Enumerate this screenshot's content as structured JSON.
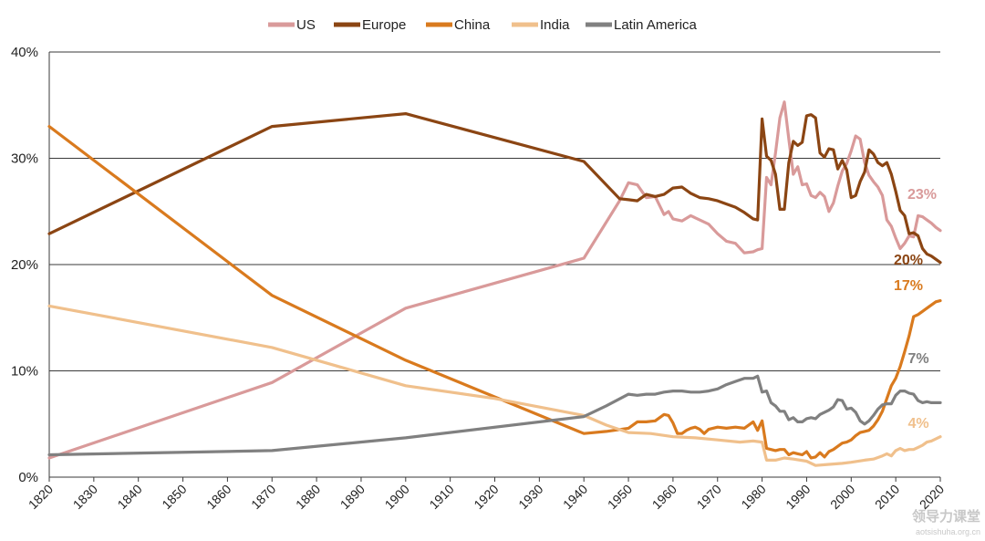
{
  "chart_data": {
    "type": "line",
    "xlim": [
      1820,
      2020
    ],
    "ylim": [
      0,
      40
    ],
    "yticks": [
      {
        "value": 0,
        "label": "0%"
      },
      {
        "value": 10,
        "label": "10%"
      },
      {
        "value": 20,
        "label": "20%"
      },
      {
        "value": 30,
        "label": "30%"
      },
      {
        "value": 40,
        "label": "40%"
      }
    ],
    "xticks": [
      {
        "value": 1820,
        "label": "1820"
      },
      {
        "value": 1830,
        "label": "1830"
      },
      {
        "value": 1840,
        "label": "1840"
      },
      {
        "value": 1850,
        "label": "1850"
      },
      {
        "value": 1860,
        "label": "1860"
      },
      {
        "value": 1870,
        "label": "1870"
      },
      {
        "value": 1880,
        "label": "1880"
      },
      {
        "value": 1890,
        "label": "1890"
      },
      {
        "value": 1900,
        "label": "1900"
      },
      {
        "value": 1910,
        "label": "1910"
      },
      {
        "value": 1920,
        "label": "1920"
      },
      {
        "value": 1930,
        "label": "1930"
      },
      {
        "value": 1940,
        "label": "1940"
      },
      {
        "value": 1950,
        "label": "1950"
      },
      {
        "value": 1960,
        "label": "1960"
      },
      {
        "value": 1970,
        "label": "1970"
      },
      {
        "value": 1980,
        "label": "1980"
      },
      {
        "value": 1990,
        "label": "1990"
      },
      {
        "value": 2000,
        "label": "2000"
      },
      {
        "value": 2010,
        "label": "2010"
      },
      {
        "value": 2020,
        "label": "2020"
      }
    ],
    "grid": "horizontal",
    "legend_position": "top-center",
    "series": [
      {
        "name": "US",
        "color": "#d99a9a",
        "end_label": "23%",
        "points": [
          [
            1820,
            1.8
          ],
          [
            1870,
            8.9
          ],
          [
            1900,
            15.9
          ],
          [
            1940,
            20.6
          ],
          [
            1948,
            26
          ],
          [
            1950,
            27.7
          ],
          [
            1952,
            27.5
          ],
          [
            1954,
            26.3
          ],
          [
            1956,
            26.4
          ],
          [
            1958,
            24.7
          ],
          [
            1959,
            25
          ],
          [
            1960,
            24.3
          ],
          [
            1962,
            24.1
          ],
          [
            1964,
            24.6
          ],
          [
            1966,
            24.2
          ],
          [
            1968,
            23.8
          ],
          [
            1970,
            22.9
          ],
          [
            1972,
            22.2
          ],
          [
            1974,
            22
          ],
          [
            1976,
            21.1
          ],
          [
            1978,
            21.2
          ],
          [
            1979,
            21.4
          ],
          [
            1980,
            21.5
          ],
          [
            1981,
            28.2
          ],
          [
            1982,
            27.5
          ],
          [
            1983,
            30.5
          ],
          [
            1984,
            33.8
          ],
          [
            1985,
            35.3
          ],
          [
            1986,
            31.8
          ],
          [
            1987,
            28.5
          ],
          [
            1988,
            29.2
          ],
          [
            1989,
            27.5
          ],
          [
            1990,
            27.6
          ],
          [
            1991,
            26.5
          ],
          [
            1992,
            26.3
          ],
          [
            1993,
            26.8
          ],
          [
            1994,
            26.4
          ],
          [
            1995,
            25
          ],
          [
            1996,
            25.8
          ],
          [
            1997,
            27.4
          ],
          [
            1998,
            28.8
          ],
          [
            1999,
            29.5
          ],
          [
            2000,
            30.7
          ],
          [
            2001,
            32.1
          ],
          [
            2002,
            31.8
          ],
          [
            2003,
            29.6
          ],
          [
            2004,
            28.4
          ],
          [
            2005,
            27.8
          ],
          [
            2006,
            27.3
          ],
          [
            2007,
            26.5
          ],
          [
            2008,
            24.2
          ],
          [
            2009,
            23.6
          ],
          [
            2010,
            22.5
          ],
          [
            2011,
            21.5
          ],
          [
            2012,
            22
          ],
          [
            2013,
            22.7
          ],
          [
            2014,
            22.6
          ],
          [
            2015,
            24.6
          ],
          [
            2016,
            24.5
          ],
          [
            2017,
            24.2
          ],
          [
            2018,
            23.9
          ],
          [
            2019,
            23.5
          ],
          [
            2020,
            23.2
          ]
        ]
      },
      {
        "name": "Europe",
        "color": "#8b4513",
        "end_label": "20%",
        "points": [
          [
            1820,
            22.9
          ],
          [
            1870,
            33
          ],
          [
            1900,
            34.2
          ],
          [
            1940,
            29.7
          ],
          [
            1948,
            26.2
          ],
          [
            1950,
            26.1
          ],
          [
            1952,
            26
          ],
          [
            1954,
            26.6
          ],
          [
            1956,
            26.4
          ],
          [
            1958,
            26.6
          ],
          [
            1960,
            27.2
          ],
          [
            1962,
            27.3
          ],
          [
            1964,
            26.7
          ],
          [
            1966,
            26.3
          ],
          [
            1968,
            26.2
          ],
          [
            1970,
            26
          ],
          [
            1972,
            25.7
          ],
          [
            1974,
            25.4
          ],
          [
            1976,
            24.9
          ],
          [
            1978,
            24.3
          ],
          [
            1979,
            24.2
          ],
          [
            1980,
            33.7
          ],
          [
            1981,
            30.2
          ],
          [
            1982,
            29.8
          ],
          [
            1983,
            28.5
          ],
          [
            1984,
            25.2
          ],
          [
            1985,
            25.2
          ],
          [
            1986,
            29.6
          ],
          [
            1987,
            31.6
          ],
          [
            1988,
            31.2
          ],
          [
            1989,
            31.5
          ],
          [
            1990,
            34
          ],
          [
            1991,
            34.1
          ],
          [
            1992,
            33.8
          ],
          [
            1993,
            30.5
          ],
          [
            1994,
            30.1
          ],
          [
            1995,
            30.9
          ],
          [
            1996,
            30.8
          ],
          [
            1997,
            29
          ],
          [
            1998,
            29.8
          ],
          [
            1999,
            28.9
          ],
          [
            2000,
            26.3
          ],
          [
            2001,
            26.5
          ],
          [
            2002,
            27.8
          ],
          [
            2003,
            28.7
          ],
          [
            2004,
            30.8
          ],
          [
            2005,
            30.4
          ],
          [
            2006,
            29.6
          ],
          [
            2007,
            29.3
          ],
          [
            2008,
            29.6
          ],
          [
            2009,
            28.5
          ],
          [
            2010,
            26.9
          ],
          [
            2011,
            25.1
          ],
          [
            2012,
            24.6
          ],
          [
            2013,
            22.9
          ],
          [
            2014,
            23
          ],
          [
            2015,
            22.7
          ],
          [
            2016,
            21.5
          ],
          [
            2017,
            21
          ],
          [
            2018,
            20.8
          ],
          [
            2019,
            20.5
          ],
          [
            2020,
            20.2
          ]
        ]
      },
      {
        "name": "China",
        "color": "#d97a1e",
        "end_label": "17%",
        "points": [
          [
            1820,
            33
          ],
          [
            1870,
            17.1
          ],
          [
            1900,
            11
          ],
          [
            1940,
            4.1
          ],
          [
            1945,
            4.3
          ],
          [
            1950,
            4.6
          ],
          [
            1952,
            5.2
          ],
          [
            1954,
            5.2
          ],
          [
            1956,
            5.3
          ],
          [
            1958,
            5.9
          ],
          [
            1959,
            5.8
          ],
          [
            1960,
            5.1
          ],
          [
            1961,
            4.1
          ],
          [
            1962,
            4.1
          ],
          [
            1963,
            4.4
          ],
          [
            1964,
            4.6
          ],
          [
            1965,
            4.7
          ],
          [
            1966,
            4.5
          ],
          [
            1967,
            4.1
          ],
          [
            1968,
            4.5
          ],
          [
            1970,
            4.7
          ],
          [
            1972,
            4.6
          ],
          [
            1974,
            4.7
          ],
          [
            1976,
            4.6
          ],
          [
            1978,
            5.2
          ],
          [
            1979,
            4.4
          ],
          [
            1980,
            5.3
          ],
          [
            1981,
            2.7
          ],
          [
            1982,
            2.6
          ],
          [
            1983,
            2.5
          ],
          [
            1984,
            2.6
          ],
          [
            1985,
            2.6
          ],
          [
            1986,
            2.1
          ],
          [
            1987,
            2.3
          ],
          [
            1988,
            2.2
          ],
          [
            1989,
            2.1
          ],
          [
            1990,
            2.4
          ],
          [
            1991,
            1.8
          ],
          [
            1992,
            1.9
          ],
          [
            1993,
            2.3
          ],
          [
            1994,
            1.9
          ],
          [
            1995,
            2.4
          ],
          [
            1996,
            2.6
          ],
          [
            1997,
            2.9
          ],
          [
            1998,
            3.2
          ],
          [
            1999,
            3.3
          ],
          [
            2000,
            3.5
          ],
          [
            2001,
            3.9
          ],
          [
            2002,
            4.2
          ],
          [
            2003,
            4.3
          ],
          [
            2004,
            4.4
          ],
          [
            2005,
            4.8
          ],
          [
            2006,
            5.4
          ],
          [
            2007,
            6.2
          ],
          [
            2008,
            7.4
          ],
          [
            2009,
            8.6
          ],
          [
            2010,
            9.3
          ],
          [
            2011,
            10.4
          ],
          [
            2012,
            11.8
          ],
          [
            2013,
            13.3
          ],
          [
            2014,
            15.1
          ],
          [
            2015,
            15.3
          ],
          [
            2016,
            15.6
          ],
          [
            2017,
            15.9
          ],
          [
            2018,
            16.2
          ],
          [
            2019,
            16.5
          ],
          [
            2020,
            16.6
          ]
        ]
      },
      {
        "name": "India",
        "color": "#f0c08c",
        "end_label": "4%",
        "points": [
          [
            1820,
            16.1
          ],
          [
            1870,
            12.2
          ],
          [
            1900,
            8.6
          ],
          [
            1920,
            7.4
          ],
          [
            1940,
            5.8
          ],
          [
            1945,
            4.9
          ],
          [
            1950,
            4.2
          ],
          [
            1955,
            4.1
          ],
          [
            1960,
            3.8
          ],
          [
            1965,
            3.7
          ],
          [
            1970,
            3.5
          ],
          [
            1975,
            3.3
          ],
          [
            1978,
            3.4
          ],
          [
            1980,
            3.3
          ],
          [
            1981,
            1.6
          ],
          [
            1983,
            1.6
          ],
          [
            1985,
            1.8
          ],
          [
            1987,
            1.7
          ],
          [
            1990,
            1.5
          ],
          [
            1992,
            1.1
          ],
          [
            1995,
            1.2
          ],
          [
            1998,
            1.3
          ],
          [
            2000,
            1.4
          ],
          [
            2003,
            1.6
          ],
          [
            2005,
            1.7
          ],
          [
            2007,
            2
          ],
          [
            2008,
            2.2
          ],
          [
            2009,
            2
          ],
          [
            2010,
            2.5
          ],
          [
            2011,
            2.7
          ],
          [
            2012,
            2.5
          ],
          [
            2013,
            2.6
          ],
          [
            2014,
            2.6
          ],
          [
            2015,
            2.8
          ],
          [
            2016,
            3
          ],
          [
            2017,
            3.3
          ],
          [
            2018,
            3.4
          ],
          [
            2019,
            3.6
          ],
          [
            2020,
            3.8
          ]
        ]
      },
      {
        "name": "Latin America",
        "color": "#808080",
        "end_label": "7%",
        "points": [
          [
            1820,
            2.1
          ],
          [
            1870,
            2.5
          ],
          [
            1900,
            3.7
          ],
          [
            1940,
            5.7
          ],
          [
            1945,
            6.7
          ],
          [
            1950,
            7.8
          ],
          [
            1952,
            7.7
          ],
          [
            1954,
            7.8
          ],
          [
            1956,
            7.8
          ],
          [
            1958,
            8
          ],
          [
            1960,
            8.1
          ],
          [
            1962,
            8.1
          ],
          [
            1964,
            8
          ],
          [
            1966,
            8
          ],
          [
            1968,
            8.1
          ],
          [
            1970,
            8.3
          ],
          [
            1972,
            8.7
          ],
          [
            1974,
            9
          ],
          [
            1976,
            9.3
          ],
          [
            1978,
            9.3
          ],
          [
            1979,
            9.5
          ],
          [
            1980,
            8
          ],
          [
            1981,
            8.1
          ],
          [
            1982,
            7
          ],
          [
            1983,
            6.7
          ],
          [
            1984,
            6.2
          ],
          [
            1985,
            6.2
          ],
          [
            1986,
            5.4
          ],
          [
            1987,
            5.6
          ],
          [
            1988,
            5.2
          ],
          [
            1989,
            5.2
          ],
          [
            1990,
            5.5
          ],
          [
            1991,
            5.6
          ],
          [
            1992,
            5.5
          ],
          [
            1993,
            5.9
          ],
          [
            1994,
            6.1
          ],
          [
            1995,
            6.3
          ],
          [
            1996,
            6.6
          ],
          [
            1997,
            7.3
          ],
          [
            1998,
            7.2
          ],
          [
            1999,
            6.4
          ],
          [
            2000,
            6.5
          ],
          [
            2001,
            6.1
          ],
          [
            2002,
            5.3
          ],
          [
            2003,
            5
          ],
          [
            2004,
            5.3
          ],
          [
            2005,
            5.8
          ],
          [
            2006,
            6.4
          ],
          [
            2007,
            6.8
          ],
          [
            2008,
            6.9
          ],
          [
            2009,
            6.9
          ],
          [
            2010,
            7.7
          ],
          [
            2011,
            8.1
          ],
          [
            2012,
            8.1
          ],
          [
            2013,
            7.9
          ],
          [
            2014,
            7.8
          ],
          [
            2015,
            7.2
          ],
          [
            2016,
            7
          ],
          [
            2017,
            7.1
          ],
          [
            2018,
            7
          ],
          [
            2019,
            7
          ],
          [
            2020,
            7
          ]
        ]
      }
    ]
  },
  "watermark": {
    "main": "领导力课堂",
    "sub": "aotsishuha.org.cn"
  }
}
